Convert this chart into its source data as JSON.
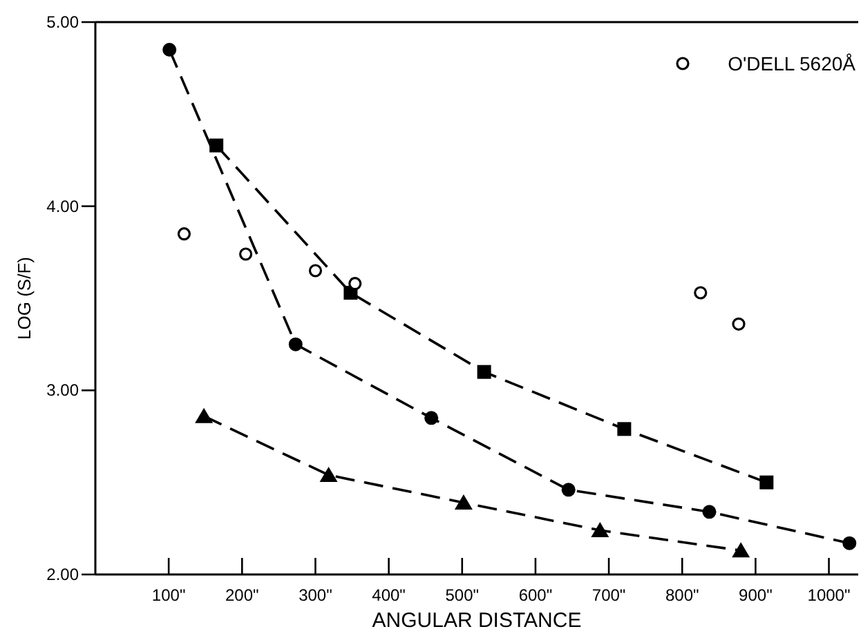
{
  "chart_data": {
    "type": "line",
    "xlabel": "ANGULAR DISTANCE",
    "ylabel": "LOG (S/F)",
    "xlim": [
      0,
      1040
    ],
    "ylim": [
      2,
      5
    ],
    "xticks": [
      {
        "value": 100,
        "label": "100\""
      },
      {
        "value": 200,
        "label": "200\""
      },
      {
        "value": 300,
        "label": "300\""
      },
      {
        "value": 400,
        "label": "400\""
      },
      {
        "value": 500,
        "label": "500\""
      },
      {
        "value": 600,
        "label": "600\""
      },
      {
        "value": 700,
        "label": "700\""
      },
      {
        "value": 800,
        "label": "800\""
      },
      {
        "value": 900,
        "label": "900\""
      },
      {
        "value": 1000,
        "label": "1000\""
      }
    ],
    "yticks": [
      {
        "value": 2,
        "label": "2.00"
      },
      {
        "value": 3,
        "label": "3.00"
      },
      {
        "value": 4,
        "label": "4.00"
      },
      {
        "value": 5,
        "label": "5.00"
      }
    ],
    "grid": false,
    "legend": "top right",
    "line_style": "dashed",
    "series": [
      {
        "color": "#000000",
        "marker": "circle",
        "x": [
          101,
          273,
          458,
          645,
          837,
          1028
        ],
        "values": [
          4.85,
          3.25,
          2.85,
          2.46,
          2.34,
          2.17
        ]
      },
      {
        "color": "#000000",
        "marker": "square",
        "x": [
          165,
          348,
          530,
          721,
          915
        ],
        "values": [
          4.33,
          3.53,
          3.1,
          2.79,
          2.5
        ]
      },
      {
        "color": "#000000",
        "marker": "triangle",
        "x": [
          148,
          318,
          502,
          688,
          880
        ],
        "values": [
          2.86,
          2.54,
          2.39,
          2.24,
          2.13
        ]
      },
      {
        "type": "scatter",
        "name": "O'DELL 5620Å",
        "color": "#000000",
        "marker": "circle",
        "x": [
          121,
          205,
          300,
          354,
          825,
          877
        ],
        "values": [
          3.85,
          3.74,
          3.65,
          3.58,
          3.53,
          3.36
        ]
      }
    ]
  }
}
